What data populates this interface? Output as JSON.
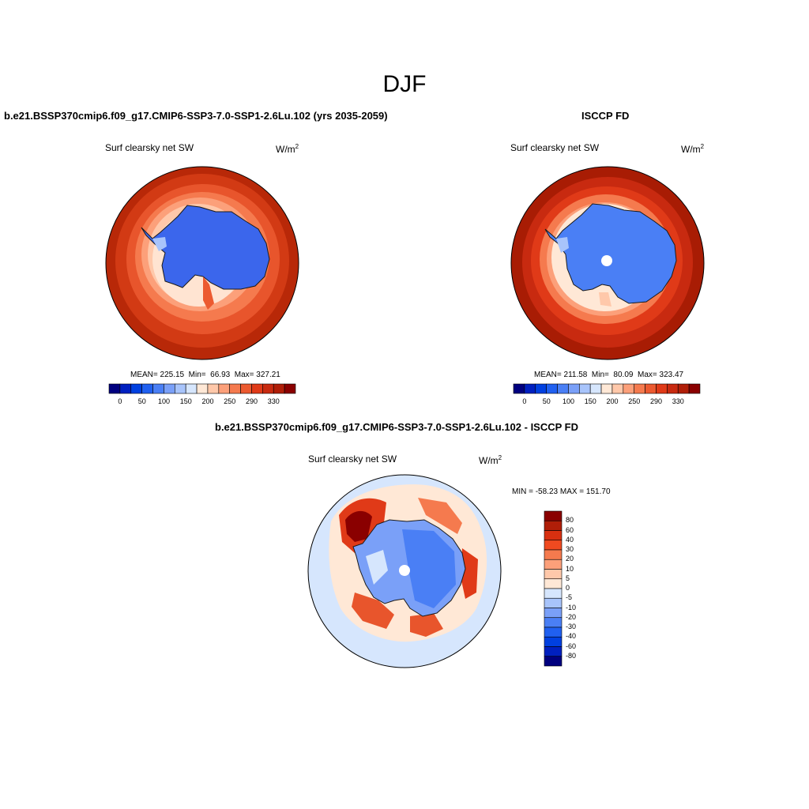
{
  "title": "DJF",
  "panels": {
    "left": {
      "title": "b.e21.BSSP370cmip6.f09_g17.CMIP6-SSP3-7.0-SSP1-2.6Lu.102 (yrs 2035-2059)",
      "variable": "Surf clearsky net SW",
      "units_base": "W/m",
      "units_exp": "2",
      "stats": "MEAN= 225.15  Min=  66.93  Max= 327.21",
      "colorbar_labels": [
        "0",
        "50",
        "100",
        "150",
        "200",
        "250",
        "290",
        "330"
      ]
    },
    "right": {
      "title": "ISCCP FD",
      "variable": "Surf clearsky net SW",
      "units_base": "W/m",
      "units_exp": "2",
      "stats": "MEAN= 211.58  Min=  80.09  Max= 323.47",
      "colorbar_labels": [
        "0",
        "50",
        "100",
        "150",
        "200",
        "250",
        "290",
        "330"
      ]
    },
    "diff": {
      "title": "b.e21.BSSP370cmip6.f09_g17.CMIP6-SSP3-7.0-SSP1-2.6Lu.102 - ISCCP FD",
      "variable": "Surf clearsky net SW",
      "units_base": "W/m",
      "units_exp": "2",
      "stats": "MIN = -58.23 MAX = 151.70",
      "colorbar_labels": [
        "80",
        "60",
        "40",
        "30",
        "20",
        "10",
        "5",
        "0",
        "-5",
        "-10",
        "-20",
        "-30",
        "-40",
        "-60",
        "-80"
      ]
    }
  },
  "colors": {
    "abs_scale": [
      "#00007f",
      "#0020c0",
      "#0040e0",
      "#2060f0",
      "#4a7ff5",
      "#7aa0f8",
      "#a8c4fb",
      "#d6e6fd",
      "#ffe8d6",
      "#ffc8aa",
      "#fca07a",
      "#f57a4e",
      "#ec5a30",
      "#e03a18",
      "#c82a10",
      "#b01e08",
      "#8a0000"
    ],
    "diff_scale": [
      "#8a0000",
      "#b01e08",
      "#d83010",
      "#f04a20",
      "#f57a4e",
      "#fca07a",
      "#ffc8aa",
      "#ffe8d6",
      "#d6e6fd",
      "#a8c4fb",
      "#7aa0f8",
      "#4a7ff5",
      "#2060f0",
      "#0040e0",
      "#0020c0",
      "#00007f"
    ],
    "land": "#3b66ec"
  }
}
